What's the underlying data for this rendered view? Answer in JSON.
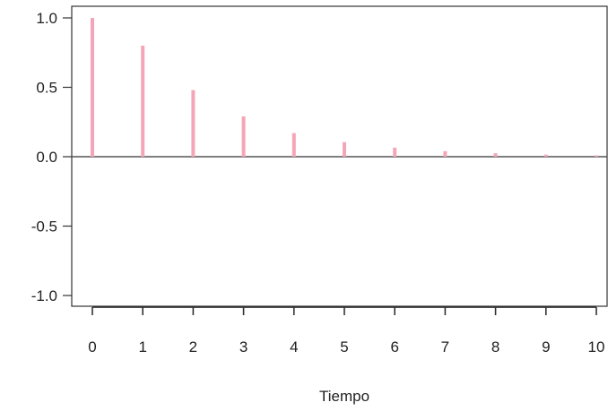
{
  "chart_data": {
    "type": "bar",
    "subtype": "stem",
    "title": "",
    "xlabel": "Tiempo",
    "ylabel": "",
    "x": [
      0,
      1,
      2,
      3,
      4,
      5,
      6,
      7,
      8,
      9,
      10
    ],
    "values": [
      1.0,
      0.8,
      0.48,
      0.29,
      0.17,
      0.105,
      0.065,
      0.04,
      0.025,
      0.015,
      0.01
    ],
    "xlim": [
      0,
      10
    ],
    "ylim": [
      -1.0,
      1.0
    ],
    "y_ticks": [
      1.0,
      0.5,
      0.0,
      -0.5,
      -1.0
    ],
    "y_tick_labels": [
      "1.0",
      "0.5",
      "0.0",
      "-0.5",
      "-1.0"
    ],
    "x_ticks": [
      0,
      1,
      2,
      3,
      4,
      5,
      6,
      7,
      8,
      9,
      10
    ],
    "x_tick_labels": [
      "0",
      "1",
      "2",
      "3",
      "4",
      "5",
      "6",
      "7",
      "8",
      "9",
      "10"
    ],
    "zero_line": true,
    "grid": false,
    "colors": {
      "stem": "#f4a6b8",
      "axis": "#333333",
      "zero_line": "#555555"
    }
  }
}
